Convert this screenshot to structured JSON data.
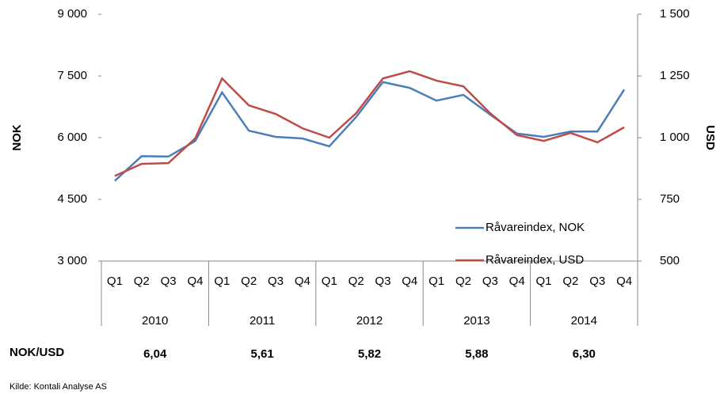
{
  "chart_data": {
    "type": "line",
    "y_label": "NOK",
    "y2_label": "USD",
    "categories": [
      "Q1",
      "Q2",
      "Q3",
      "Q4",
      "Q1",
      "Q2",
      "Q3",
      "Q4",
      "Q1",
      "Q2",
      "Q3",
      "Q4",
      "Q1",
      "Q2",
      "Q3",
      "Q4",
      "Q1",
      "Q2",
      "Q3",
      "Q4"
    ],
    "groups": [
      "2010",
      "2011",
      "2012",
      "2013",
      "2014"
    ],
    "series": [
      {
        "name": "Råvareindex, NOK",
        "color": "#4a7ebb",
        "axis": "y",
        "values": [
          4950,
          5550,
          5540,
          5920,
          7100,
          6170,
          6020,
          5980,
          5790,
          6500,
          7350,
          7210,
          6900,
          7040,
          6560,
          6100,
          6020,
          6150,
          6150,
          7170
        ]
      },
      {
        "name": "Råvareindex, USD",
        "color": "#be4b48",
        "axis": "y2",
        "values": [
          845,
          894,
          897,
          997,
          1240,
          1131,
          1096,
          1038,
          1000,
          1099,
          1240,
          1269,
          1231,
          1208,
          1099,
          1010,
          987,
          1019,
          981,
          1042
        ]
      }
    ],
    "ylim": [
      3000,
      9000
    ],
    "yticks": [
      {
        "value": 3000,
        "label": "3 000"
      },
      {
        "value": 4500,
        "label": "4 500"
      },
      {
        "value": 6000,
        "label": "6 000"
      },
      {
        "value": 7500,
        "label": "7 500"
      },
      {
        "value": 9000,
        "label": "9 000"
      }
    ],
    "y2lim": [
      500,
      1500
    ],
    "y2ticks": [
      500,
      750,
      {
        "value": 1000,
        "label": "1 000"
      },
      {
        "value": 1250,
        "label": "1 250"
      },
      {
        "value": 1500,
        "label": "1 500"
      }
    ],
    "legend": "lower right",
    "rates": {
      "label": "NOK/USD",
      "values": [
        "6,04",
        "5,61",
        "5,82",
        "5,88",
        "6,30"
      ]
    },
    "source": "Kilde: Kontali Analyse AS"
  }
}
